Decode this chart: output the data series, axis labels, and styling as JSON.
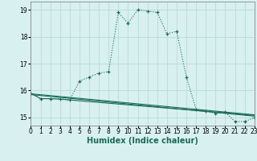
{
  "line1_x": [
    0,
    1,
    2,
    3,
    4,
    5,
    6,
    7,
    8,
    9,
    10,
    11,
    12,
    13,
    14,
    15,
    16,
    17,
    18,
    19,
    20,
    21,
    22,
    23
  ],
  "line1_y": [
    15.9,
    15.7,
    15.7,
    15.7,
    15.65,
    16.35,
    16.5,
    16.65,
    16.7,
    18.9,
    18.5,
    19.0,
    18.95,
    18.9,
    18.1,
    18.2,
    16.5,
    15.3,
    15.25,
    15.15,
    15.2,
    14.85,
    14.85,
    15.0
  ],
  "line2_x": [
    0,
    1,
    2,
    3,
    4,
    5,
    6,
    7,
    8,
    9,
    10,
    11,
    12,
    13,
    14,
    15,
    16,
    17,
    18,
    19,
    20,
    21,
    22,
    23
  ],
  "line2_y": [
    15.9,
    15.7,
    15.7,
    15.68,
    15.65,
    15.62,
    15.59,
    15.56,
    15.53,
    15.5,
    15.47,
    15.44,
    15.41,
    15.38,
    15.35,
    15.32,
    15.29,
    15.26,
    15.23,
    15.2,
    15.17,
    15.14,
    15.11,
    15.08
  ],
  "line3_x": [
    0,
    23
  ],
  "line3_y": [
    15.85,
    15.05
  ],
  "line4_x": [
    0,
    23
  ],
  "line4_y": [
    15.88,
    15.1
  ],
  "line_color": "#1a6b5a",
  "bg_color": "#d8f0f0",
  "grid_color": "#c0dede",
  "xlabel": "Humidex (Indice chaleur)",
  "xlim": [
    0,
    23
  ],
  "ylim": [
    14.7,
    19.3
  ],
  "yticks": [
    15,
    16,
    17,
    18,
    19
  ],
  "xlabel_fontsize": 7,
  "tick_fontsize": 5.5
}
